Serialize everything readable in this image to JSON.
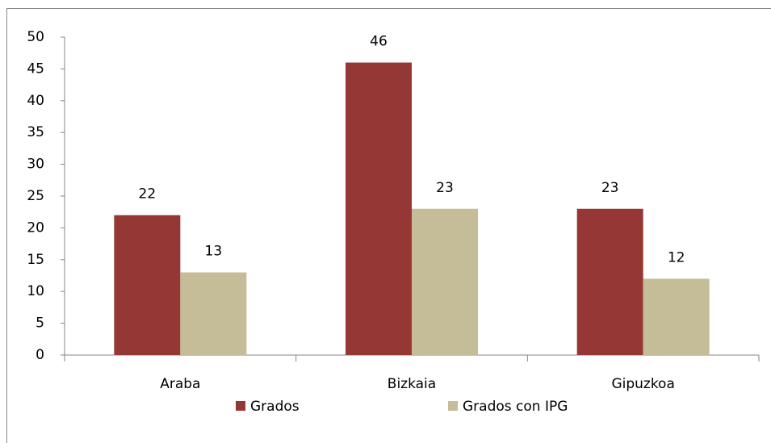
{
  "chart_data": {
    "type": "bar",
    "categories": [
      "Araba",
      "Bizkaia",
      "Gipuzkoa"
    ],
    "series": [
      {
        "name": "Grados",
        "color": "#953735",
        "values": [
          22,
          46,
          23
        ]
      },
      {
        "name": "Grados con IPG",
        "color": "#c4bd97",
        "values": [
          13,
          23,
          12
        ]
      }
    ],
    "ylim": [
      0,
      50
    ],
    "yticks": [
      0,
      5,
      10,
      15,
      20,
      25,
      30,
      35,
      40,
      45,
      50
    ],
    "grid": false,
    "legend": "bottom"
  }
}
